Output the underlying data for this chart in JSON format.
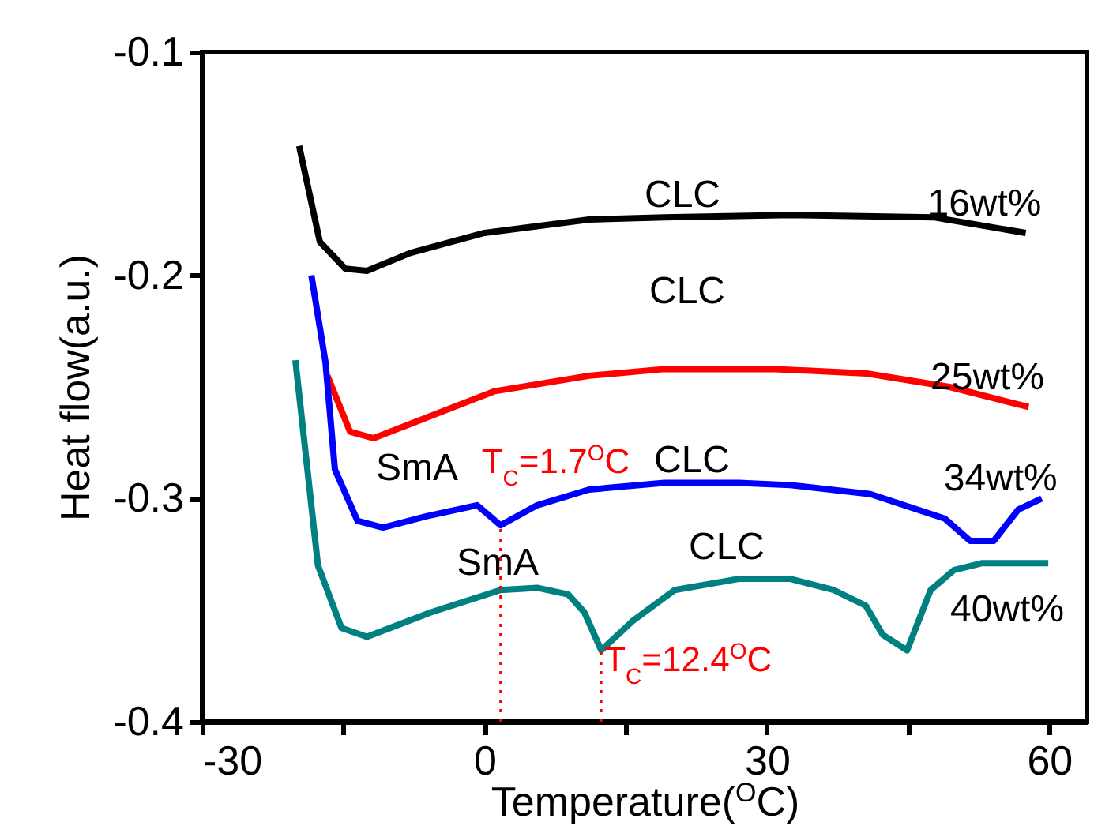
{
  "chart_data": {
    "type": "line",
    "xlabel": "Temperature($^{O}$C)",
    "ylabel": "Heat flow(a.u.)",
    "xlim": [
      -30,
      64
    ],
    "ylim": [
      -0.4,
      -0.1
    ],
    "xticks": [
      -30,
      {
        "value": -15,
        "label": null
      },
      0,
      {
        "value": 15,
        "label": null
      },
      30,
      {
        "value": 45,
        "label": null
      },
      60
    ],
    "yticks": [
      -0.4,
      -0.3,
      -0.2,
      -0.1
    ],
    "grid": false,
    "legend": false,
    "line_style": "solid",
    "marker": "none",
    "series": [
      {
        "name": "16wt%",
        "color": "#000000",
        "x": [
          -19.7,
          -17.5,
          -14.8,
          -12.5,
          -7.9,
          0,
          11.1,
          19.1,
          32.5,
          47.7,
          57.5
        ],
        "values": [
          -0.142,
          -0.185,
          -0.197,
          -0.198,
          -0.19,
          -0.181,
          -0.175,
          -0.174,
          -0.173,
          -0.174,
          -0.181
        ]
      },
      {
        "name": "25wt%",
        "color": "#ff0000",
        "x": [
          -16.7,
          -14.3,
          -11.8,
          -5.7,
          1.0,
          11.1,
          19.1,
          25.8,
          30.9,
          40.6,
          49.4,
          57.8
        ],
        "values": [
          -0.245,
          -0.27,
          -0.273,
          -0.263,
          -0.252,
          -0.245,
          -0.242,
          -0.242,
          -0.242,
          -0.244,
          -0.25,
          -0.259
        ]
      },
      {
        "name": "34wt%",
        "color": "#0000ff",
        "x": [
          -18.4,
          -16.9,
          -15.9,
          -13.5,
          -10.8,
          -6.2,
          -0.8,
          1.7,
          5.6,
          11.1,
          19.1,
          27.0,
          32.5,
          41.0,
          48.9,
          51.6,
          54.1,
          56.7,
          59.2
        ],
        "values": [
          -0.2,
          -0.239,
          -0.287,
          -0.31,
          -0.313,
          -0.308,
          -0.303,
          -0.312,
          -0.303,
          -0.296,
          -0.293,
          -0.293,
          -0.294,
          -0.298,
          -0.309,
          -0.319,
          -0.319,
          -0.305,
          -0.3
        ]
      },
      {
        "name": "40wt%",
        "color": "#008080",
        "x": [
          -20.1,
          -17.7,
          -15.2,
          -12.5,
          -5.7,
          1.7,
          5.6,
          8.9,
          10.6,
          12.4,
          15.7,
          20.2,
          27.0,
          32.5,
          37.1,
          40.5,
          42.3,
          44.9,
          47.4,
          49.9,
          52.8,
          59.9
        ],
        "values": [
          -0.238,
          -0.33,
          -0.358,
          -0.362,
          -0.351,
          -0.341,
          -0.34,
          -0.343,
          -0.351,
          -0.368,
          -0.355,
          -0.341,
          -0.336,
          -0.336,
          -0.341,
          -0.348,
          -0.361,
          -0.368,
          -0.341,
          -0.332,
          -0.329,
          -0.329
        ]
      }
    ],
    "annotations": [
      "CLC",
      "CLC",
      "CLC",
      "CLC",
      "SmA",
      "SmA"
    ],
    "ref_lines": [
      {
        "axis": "x",
        "value": 1.7,
        "label": "T$_{C}$=1.7$^{O}$C",
        "color": "#ff0000",
        "line_style": "dotted"
      },
      {
        "axis": "x",
        "value": 12.4,
        "label": "T$_{C}$=12.4$^{O}$C",
        "color": "#ff0000",
        "line_style": "dotted"
      }
    ]
  }
}
